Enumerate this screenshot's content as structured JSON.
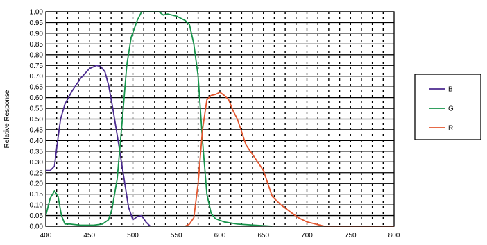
{
  "chart_data": {
    "type": "line",
    "title": "",
    "xlabel": "",
    "ylabel": "Relative Response",
    "xlim": [
      400,
      800
    ],
    "ylim": [
      0,
      1
    ],
    "x_ticks": [
      "400",
      "450",
      "500",
      "550",
      "600",
      "650",
      "700",
      "750",
      "800"
    ],
    "y_ticks": [
      "0.00",
      "0.05",
      "0.10",
      "0.15",
      "0.20",
      "0.25",
      "0.30",
      "0.35",
      "0.40",
      "0.45",
      "0.50",
      "0.55",
      "0.60",
      "0.65",
      "0.70",
      "0.75",
      "0.80",
      "0.85",
      "0.90",
      "0.95",
      "1.00"
    ],
    "grid": true,
    "legend_position": "right",
    "series": [
      {
        "name": "B",
        "color": "#4b2a8f",
        "points": [
          [
            400,
            0.26
          ],
          [
            405,
            0.26
          ],
          [
            410,
            0.28
          ],
          [
            413,
            0.38
          ],
          [
            417,
            0.5
          ],
          [
            422,
            0.57
          ],
          [
            430,
            0.63
          ],
          [
            440,
            0.69
          ],
          [
            450,
            0.735
          ],
          [
            458,
            0.75
          ],
          [
            463,
            0.745
          ],
          [
            468,
            0.72
          ],
          [
            472,
            0.66
          ],
          [
            477,
            0.55
          ],
          [
            483,
            0.4
          ],
          [
            490,
            0.22
          ],
          [
            495,
            0.09
          ],
          [
            500,
            0.03
          ],
          [
            505,
            0.045
          ],
          [
            510,
            0.05
          ],
          [
            515,
            0.02
          ],
          [
            520,
            0.0
          ]
        ]
      },
      {
        "name": "G",
        "color": "#16934a",
        "points": [
          [
            400,
            0.05
          ],
          [
            405,
            0.13
          ],
          [
            410,
            0.165
          ],
          [
            414,
            0.14
          ],
          [
            418,
            0.05
          ],
          [
            422,
            0.01
          ],
          [
            428,
            0.01
          ],
          [
            440,
            0.005
          ],
          [
            455,
            0.005
          ],
          [
            465,
            0.01
          ],
          [
            472,
            0.03
          ],
          [
            476,
            0.08
          ],
          [
            482,
            0.22
          ],
          [
            488,
            0.5
          ],
          [
            493,
            0.75
          ],
          [
            498,
            0.88
          ],
          [
            505,
            0.96
          ],
          [
            510,
            1.0
          ],
          [
            530,
            1.0
          ],
          [
            535,
            0.985
          ],
          [
            540,
            0.99
          ],
          [
            550,
            0.98
          ],
          [
            560,
            0.96
          ],
          [
            565,
            0.94
          ],
          [
            570,
            0.85
          ],
          [
            575,
            0.7
          ],
          [
            580,
            0.4
          ],
          [
            585,
            0.15
          ],
          [
            590,
            0.06
          ],
          [
            595,
            0.035
          ],
          [
            605,
            0.02
          ],
          [
            620,
            0.01
          ],
          [
            640,
            0.005
          ],
          [
            660,
            0.0
          ]
        ]
      },
      {
        "name": "R",
        "color": "#e2552d",
        "points": [
          [
            560,
            0.0
          ],
          [
            565,
            0.01
          ],
          [
            570,
            0.04
          ],
          [
            575,
            0.2
          ],
          [
            580,
            0.45
          ],
          [
            585,
            0.59
          ],
          [
            590,
            0.61
          ],
          [
            595,
            0.615
          ],
          [
            600,
            0.625
          ],
          [
            605,
            0.61
          ],
          [
            610,
            0.59
          ],
          [
            615,
            0.54
          ],
          [
            620,
            0.5
          ],
          [
            625,
            0.44
          ],
          [
            630,
            0.38
          ],
          [
            640,
            0.32
          ],
          [
            650,
            0.26
          ],
          [
            660,
            0.14
          ],
          [
            670,
            0.1
          ],
          [
            680,
            0.07
          ],
          [
            690,
            0.04
          ],
          [
            700,
            0.02
          ],
          [
            710,
            0.01
          ],
          [
            720,
            0.0
          ],
          [
            800,
            0.0
          ]
        ]
      }
    ]
  }
}
